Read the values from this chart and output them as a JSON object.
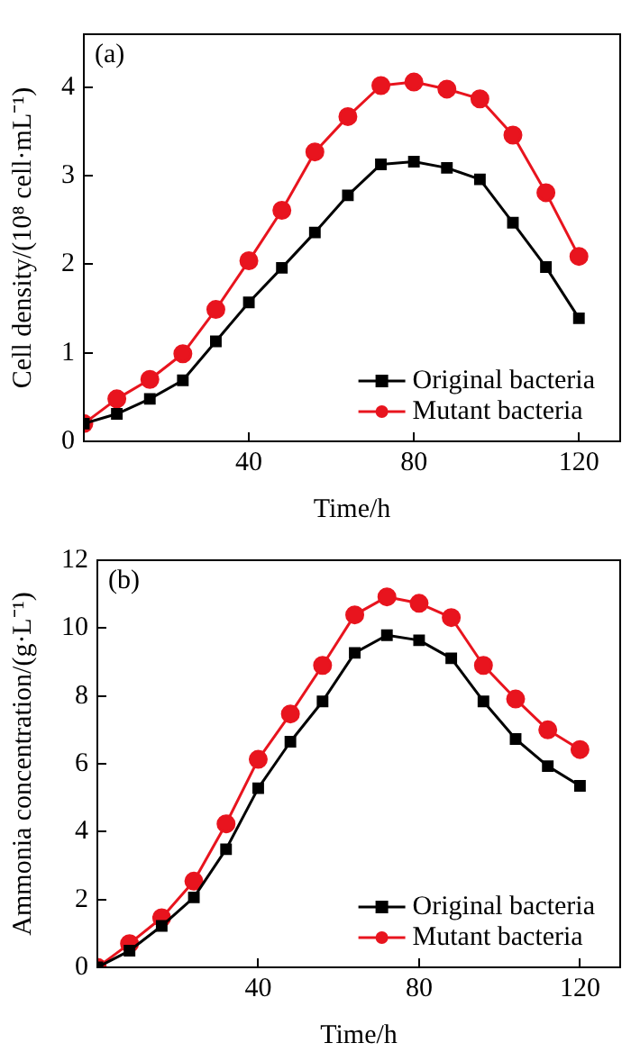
{
  "chart_data": [
    {
      "type": "line",
      "annotations": [
        "(a)"
      ],
      "xlabel": "Time/h",
      "ylabel": "Cell density/(10⁸ cell·mL⁻¹)",
      "x": [
        0,
        8,
        16,
        24,
        32,
        40,
        48,
        56,
        64,
        72,
        80,
        88,
        96,
        104,
        112,
        120
      ],
      "xlim": [
        0,
        130
      ],
      "xticks": [
        40,
        80,
        120
      ],
      "ylim": [
        0,
        4.6
      ],
      "yticks": [
        0,
        1,
        2,
        3,
        4
      ],
      "legend": "bottom right",
      "grid": false,
      "series": [
        {
          "name": "Original bacteria",
          "color": "#000000",
          "marker": "square",
          "values": [
            0.2,
            0.31,
            0.48,
            0.69,
            1.13,
            1.57,
            1.96,
            2.36,
            2.78,
            3.13,
            3.16,
            3.09,
            2.96,
            2.47,
            1.97,
            1.39
          ]
        },
        {
          "name": "Mutant bacteria",
          "color": "#e8141e",
          "marker": "circle",
          "values": [
            0.2,
            0.48,
            0.7,
            0.99,
            1.49,
            2.04,
            2.61,
            3.27,
            3.67,
            4.02,
            4.06,
            3.98,
            3.87,
            3.46,
            2.81,
            2.09
          ]
        }
      ]
    },
    {
      "type": "line",
      "annotations": [
        "(b)"
      ],
      "xlabel": "Time/h",
      "ylabel": "Ammonia concentration/(g·L⁻¹)",
      "x": [
        0,
        8,
        16,
        24,
        32,
        40,
        48,
        56,
        64,
        72,
        80,
        88,
        96,
        104,
        112,
        120
      ],
      "xlim": [
        0,
        130
      ],
      "xticks": [
        40,
        80,
        120
      ],
      "ylim": [
        0,
        12
      ],
      "yticks": [
        0,
        2,
        4,
        6,
        8,
        10,
        12
      ],
      "legend": "bottom right",
      "grid": false,
      "series": [
        {
          "name": "Original bacteria",
          "color": "#000000",
          "marker": "square",
          "values": [
            0,
            0.49,
            1.22,
            2.06,
            3.48,
            5.28,
            6.65,
            7.84,
            9.27,
            9.79,
            9.64,
            9.11,
            7.84,
            6.73,
            5.93,
            5.35
          ]
        },
        {
          "name": "Mutant bacteria",
          "color": "#e8141e",
          "marker": "circle",
          "values": [
            0,
            0.7,
            1.46,
            2.54,
            4.23,
            6.13,
            7.47,
            8.9,
            10.39,
            10.92,
            10.73,
            10.31,
            8.9,
            7.91,
            7.0,
            6.42
          ]
        }
      ]
    }
  ]
}
